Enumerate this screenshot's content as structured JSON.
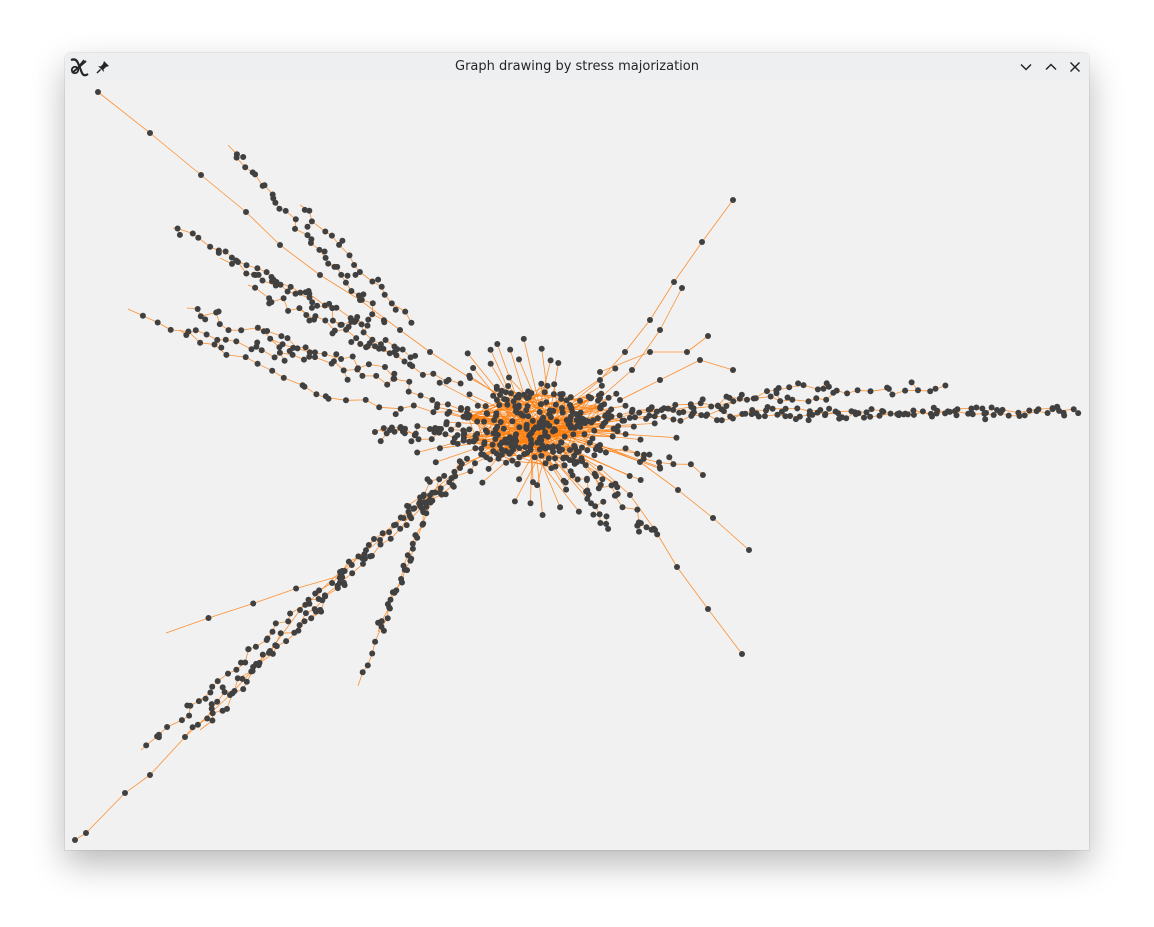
{
  "window": {
    "title": "Graph drawing by stress majorization"
  },
  "titlebar": {
    "app_icon": "graph-app-icon",
    "pin_icon": "pin-icon",
    "controls": [
      "minimize-chevron-down-icon",
      "maximize-chevron-up-icon",
      "close-x-icon"
    ]
  },
  "colors": {
    "window_background": "#f1f1f2",
    "titlebar_background": "#eeeff1",
    "node": "#404040",
    "edge": "#ff7f0e"
  }
}
